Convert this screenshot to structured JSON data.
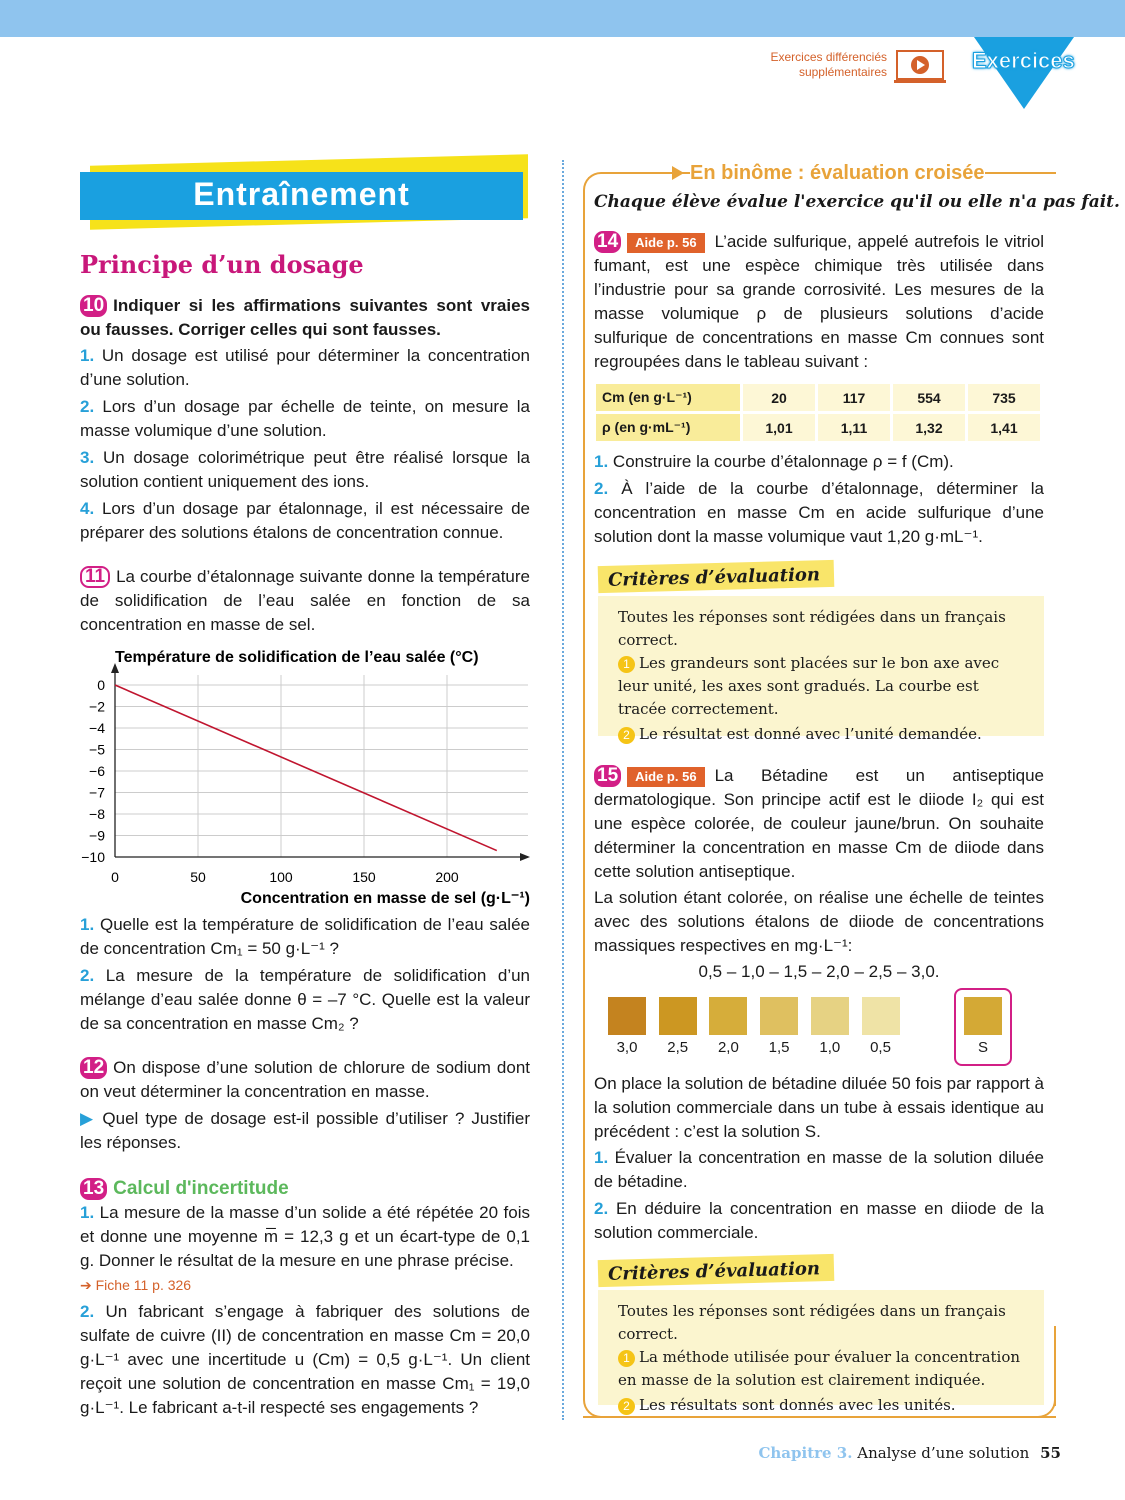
{
  "header": {
    "extra_line1": "Exercices différenciés",
    "extra_line2": "supplémentaires",
    "section_badge": "Exercices",
    "play_icon": "laptop-play-icon",
    "top_bar_color": "#8fc4ee",
    "accent": "#1aa0e0"
  },
  "left": {
    "title": "Entraînement",
    "subtitle": "Principe d’un dosage",
    "ex10": {
      "num": "10",
      "prompt": "Indiquer si les affirmations suivantes sont vraies ou fausses. Corriger celles qui sont fausses.",
      "items": [
        {
          "n": "1.",
          "t": "Un dosage est utilisé pour déterminer la concentration d’une solution."
        },
        {
          "n": "2.",
          "t": "Lors d’un dosage par échelle de teinte, on mesure la masse volumique d’une solution."
        },
        {
          "n": "3.",
          "t": "Un dosage colorimétrique peut être réalisé lorsque la solution contient uniquement des ions."
        },
        {
          "n": "4.",
          "t": "Lors d’un dosage par étalonnage, il est nécessaire de préparer des solutions étalons de concentration connue."
        }
      ]
    },
    "ex11": {
      "num": "11",
      "intro": "La courbe d’étalonnage suivante donne la température de solidification de l’eau salée en fonction de sa concentration en masse de sel.",
      "items": [
        {
          "n": "1.",
          "t": "Quelle est la température de solidification de l’eau salée de concentration Cm₁ = 50 g·L⁻¹ ?"
        },
        {
          "n": "2.",
          "t": "La mesure de la température de solidification d’un mélange d’eau salée donne θ = –7 °C. Quelle est la valeur de sa concentration en masse Cm₂ ?"
        }
      ]
    },
    "ex12": {
      "num": "12",
      "intro": "On dispose d’une solution de chlorure de sodium dont on veut déterminer la concentration en masse.",
      "bullet": "▶",
      "q": "Quel type de dosage est-il possible d’utiliser ? Justifier les réponses."
    },
    "ex13": {
      "num": "13",
      "title": "Calcul d'incertitude",
      "items": [
        {
          "n": "1.",
          "t": "La mesure de la masse d’un solide a été répétée 20 fois et donne une moyenne m̅ = 12,3 g et un écart-type de 0,1 g. Donner le résultat de la mesure en une phrase précise."
        },
        {
          "n": "2.",
          "t": "Un fabricant s’engage à fabriquer des solutions de sulfate de cuivre (II) de concentration en masse Cm = 20,0 g·L⁻¹ avec une incertitude u (Cm) = 0,5 g·L⁻¹. Un client reçoit une solution de concentration en masse Cm₁ = 19,0 g·L⁻¹. Le fabricant a-t-il respecté ses engagements ?"
        }
      ],
      "fiche": "Fiche 11 p. 326"
    }
  },
  "chart_data": {
    "type": "line",
    "title": "Température de solidification de l’eau salée (°C)",
    "xlabel": "Concentration en masse de sel (g·L⁻¹)",
    "ylabel": "",
    "x_ticks": [
      "0",
      "50",
      "100",
      "150",
      "200"
    ],
    "y_ticks": [
      "0",
      "−2",
      "−4",
      "−5",
      "−6",
      "−7",
      "−8",
      "−9",
      "−10"
    ],
    "xlim": [
      0,
      250
    ],
    "ylim": [
      -10,
      0
    ],
    "grid": true,
    "series": [
      {
        "x": [
          0,
          230
        ],
        "y": [
          0,
          -9.7
        ],
        "color": "#c0152f"
      }
    ]
  },
  "right": {
    "banner": "En binôme : évaluation croisée",
    "instruction": "Chaque élève évalue l'exercice qu'il ou elle n'a pas fait.",
    "ex14": {
      "num": "14",
      "aide": "Aide p. 56",
      "intro": "L’acide sulfurique, appelé autrefois le vitriol fumant, est une espèce chimique très utilisée dans l’industrie pour sa grande corrosivité. Les mesures de la masse volumique ρ de plusieurs solutions d’acide sulfurique de concentrations en masse Cm connues sont regroupées dans le tableau suivant :",
      "table": {
        "row_headers": [
          "Cm (en g·L⁻¹)",
          "ρ (en g·mL⁻¹)"
        ],
        "cm": [
          "20",
          "117",
          "554",
          "735"
        ],
        "rho": [
          "1,01",
          "1,11",
          "1,32",
          "1,41"
        ]
      },
      "items": [
        {
          "n": "1.",
          "t": "Construire la courbe d’étalonnage ρ = f (Cm)."
        },
        {
          "n": "2.",
          "t": "À l’aide de la courbe d’étalonnage, déterminer la concentration en masse Cm en acide sulfurique d’une solution dont la masse volumique vaut 1,20 g·mL⁻¹."
        }
      ],
      "criteria": {
        "title": "Critères d’évaluation",
        "lead": "Toutes les réponses sont rédigées dans un français correct.",
        "items": [
          {
            "n": "1",
            "t": "Les grandeurs sont placées sur le bon axe avec leur unité, les axes sont gradués. La courbe est tracée correctement."
          },
          {
            "n": "2",
            "t": "Le résultat est donné avec l’unité demandée."
          }
        ]
      }
    },
    "ex15": {
      "num": "15",
      "aide": "Aide p. 56",
      "intro": "La Bétadine est un antiseptique dermatologique. Son principe actif est le diiode I₂ qui est une espèce colorée, de couleur jaune/brun. On souhaite déterminer la concentration en masse Cm de diiode dans cette solution antiseptique.",
      "intro2": "La solution étant colorée, on réalise une échelle de teintes avec des solutions étalons de diiode de concentrations massiques respectives en mg·L⁻¹:",
      "series": "0,5 – 1,0 – 1,5 – 2,0 – 2,5 – 3,0.",
      "swatches": [
        {
          "label": "3,0",
          "color": "#c4831f"
        },
        {
          "label": "2,5",
          "color": "#cc9722"
        },
        {
          "label": "2,0",
          "color": "#d6ad3a"
        },
        {
          "label": "1,5",
          "color": "#dfc060"
        },
        {
          "label": "1,0",
          "color": "#e6d283"
        },
        {
          "label": "0,5",
          "color": "#efe3a6"
        }
      ],
      "sample": {
        "label": "S",
        "color": "#d4a935"
      },
      "text3": "On place la solution de bétadine diluée 50 fois par rapport à la solution commerciale dans un tube à essais identique au précédent : c’est la solution S.",
      "items": [
        {
          "n": "1.",
          "t": "Évaluer la concentration en masse de la solution diluée de bétadine."
        },
        {
          "n": "2.",
          "t": "En déduire la concentration en masse en diiode de la solution commerciale."
        }
      ],
      "criteria": {
        "title": "Critères d’évaluation",
        "lead": "Toutes les réponses sont rédigées dans un français correct.",
        "items": [
          {
            "n": "1",
            "t": "La méthode utilisée pour évaluer la concentration en masse de la solution est clairement indiquée."
          },
          {
            "n": "2",
            "t": "Les résultats sont donnés avec les unités."
          }
        ]
      }
    }
  },
  "footer": {
    "chapter": "Chapitre 3.",
    "title": "Analyse d’une solution",
    "page": "55"
  }
}
